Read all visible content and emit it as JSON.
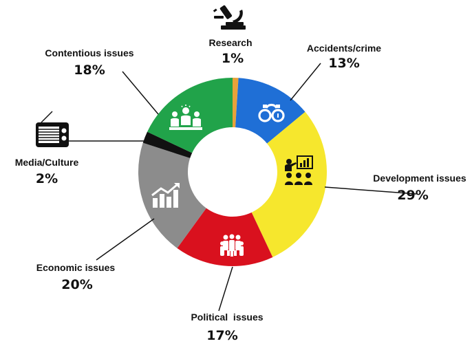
{
  "chart_data": {
    "type": "pie",
    "donut": true,
    "title": "",
    "slices": [
      {
        "label": "Research",
        "value": 1,
        "value_label": "1%",
        "color": "#e8a23a",
        "icon": "microscope-icon"
      },
      {
        "label": "Accidents/crime",
        "value": 13,
        "value_label": "13%",
        "color": "#1f6fd6",
        "icon": "handcuffs-icon"
      },
      {
        "label": "Development issues",
        "value": 29,
        "value_label": "29%",
        "color": "#f6e72d",
        "icon": "presentation-icon"
      },
      {
        "label": "Political  issues",
        "value": 17,
        "value_label": "17%",
        "color": "#d9111e",
        "icon": "crowd-icon"
      },
      {
        "label": "Economic issues",
        "value": 20,
        "value_label": "20%",
        "color": "#8c8c8c",
        "icon": "growth-chart-icon"
      },
      {
        "label": "Media/Culture",
        "value": 2,
        "value_label": "2%",
        "color": "#111111",
        "icon": "radio-icon"
      },
      {
        "label": "Contentious issues",
        "value": 18,
        "value_label": "18%",
        "color": "#21a34a",
        "icon": "meeting-icon"
      }
    ]
  }
}
